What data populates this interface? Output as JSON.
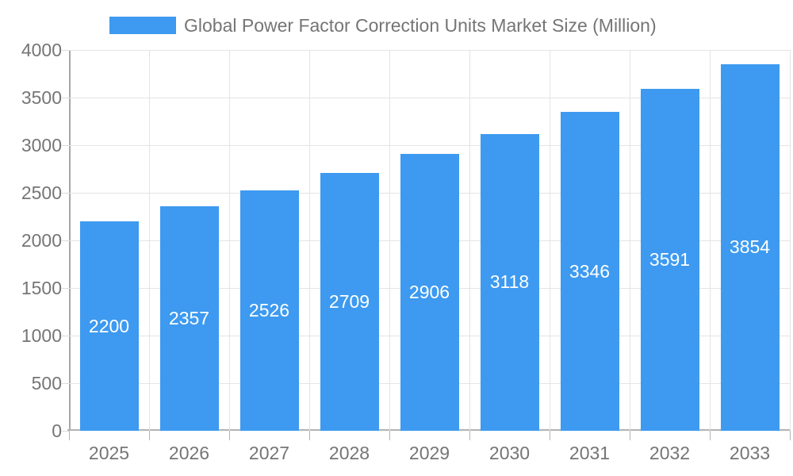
{
  "legend": {
    "label": "Global Power Factor Correction Units Market Size (Million)"
  },
  "chart_data": {
    "type": "bar",
    "title": "Global Power Factor Correction Units Market Size (Million)",
    "categories": [
      "2025",
      "2026",
      "2027",
      "2028",
      "2029",
      "2030",
      "2031",
      "2032",
      "2033"
    ],
    "values": [
      2200,
      2357,
      2526,
      2709,
      2906,
      3118,
      3346,
      3591,
      3854
    ],
    "xlabel": "",
    "ylabel": "",
    "ylim": [
      0,
      4000
    ],
    "ytick_step": 500,
    "grid": true,
    "legend_position": "top",
    "colors": {
      "bar": "#3D9AF0",
      "bar_value_label": "#ffffff",
      "axis_text": "#757575",
      "gridline": "#e4e4e4",
      "axis_line": "#b3b3b3"
    }
  }
}
